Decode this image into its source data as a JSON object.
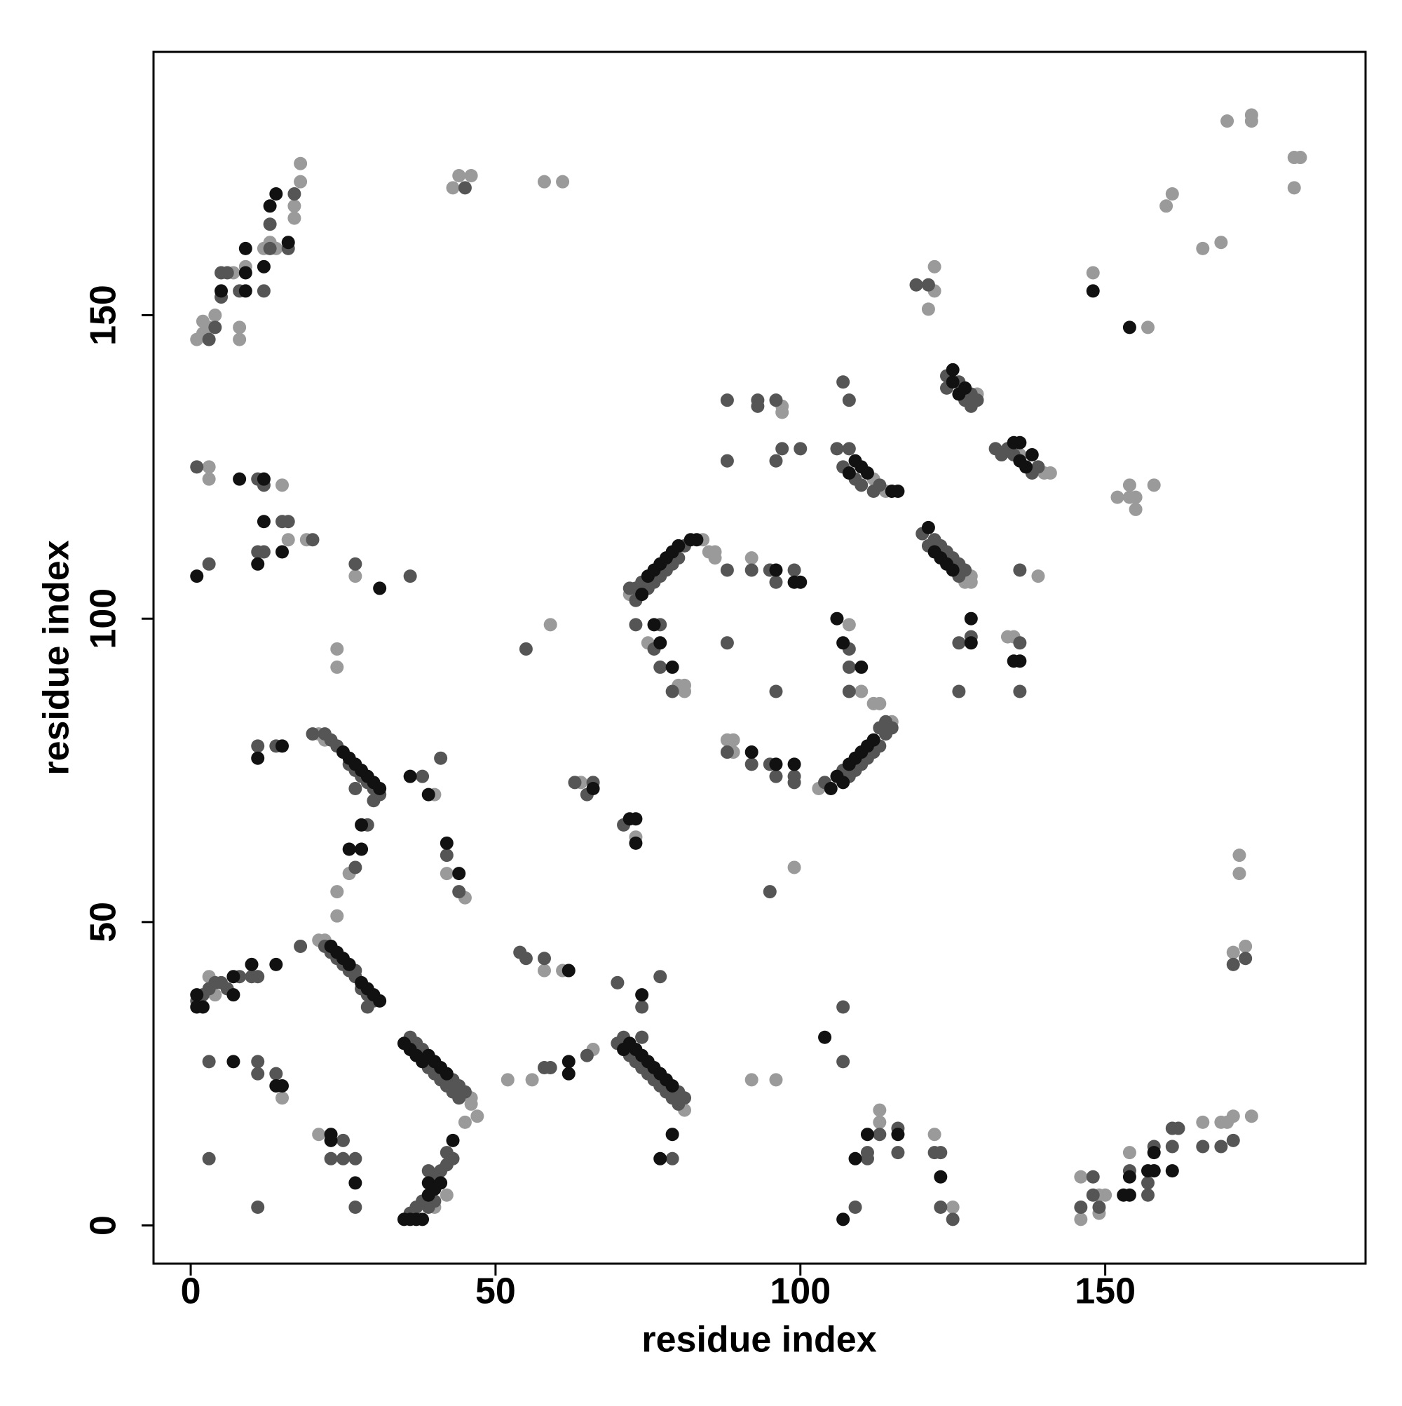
{
  "chart_data": {
    "type": "scatter",
    "x_label": "residue index",
    "y_label": "residue index",
    "xlim": [
      -6.1,
      192.7
    ],
    "ylim": [
      -6.3,
      193.4
    ],
    "xticks": [
      0,
      50,
      100,
      150
    ],
    "yticks": [
      0,
      50,
      100,
      150
    ],
    "grid": false,
    "series": [
      {
        "color": "#9a9a9a",
        "x": [
          1,
          2,
          3,
          2,
          4,
          7,
          8,
          8,
          9,
          12,
          13,
          17,
          17,
          18,
          18,
          14,
          43,
          44,
          46,
          58,
          61,
          160,
          161,
          166,
          169,
          170,
          174,
          174,
          181,
          182,
          181,
          121,
          122,
          122,
          148,
          157,
          136,
          140,
          141,
          127,
          128,
          128,
          129,
          112,
          114,
          152,
          154,
          154,
          155,
          155,
          158,
          134,
          135,
          139,
          72,
          84,
          85,
          86,
          86,
          92,
          95,
          75,
          80,
          81,
          81,
          97,
          97,
          103,
          112,
          113,
          115,
          108,
          110,
          88,
          89,
          89,
          21,
          22,
          24,
          24,
          26,
          21,
          22,
          3,
          4,
          10,
          40,
          42,
          45,
          59,
          24,
          24,
          3,
          3,
          15,
          16,
          19,
          27,
          64,
          73,
          58,
          61,
          70,
          46,
          46,
          45,
          52,
          56,
          66,
          81,
          74,
          15,
          21,
          40,
          42,
          47,
          92,
          96,
          99,
          113,
          113,
          122,
          125,
          146,
          146,
          149,
          150,
          149,
          154,
          158,
          166,
          169,
          170,
          171,
          174,
          171,
          173,
          172,
          172
        ],
        "values": [
          146,
          147,
          148,
          149,
          150,
          157,
          148,
          146,
          158,
          161,
          162,
          168,
          166,
          172,
          175,
          161,
          171,
          173,
          173,
          172,
          172,
          168,
          170,
          161,
          162,
          182,
          183,
          182,
          176,
          176,
          171,
          151,
          154,
          158,
          157,
          148,
          127,
          124,
          124,
          106,
          106,
          107,
          137,
          123,
          121,
          120,
          122,
          120,
          120,
          118,
          122,
          97,
          97,
          107,
          104,
          113,
          111,
          111,
          110,
          110,
          108,
          96,
          89,
          88,
          89,
          135,
          134,
          72,
          86,
          86,
          83,
          99,
          88,
          80,
          80,
          78,
          81,
          80,
          55,
          51,
          58,
          47,
          47,
          41,
          38,
          43,
          71,
          58,
          54,
          99,
          95,
          92,
          125,
          123,
          122,
          113,
          113,
          107,
          73,
          64,
          42,
          42,
          40,
          21,
          20,
          17,
          24,
          24,
          29,
          19,
          31,
          21,
          15,
          3,
          5,
          18,
          24,
          24,
          59,
          17,
          19,
          15,
          3,
          1,
          8,
          5,
          5,
          2,
          12,
          9,
          17,
          17,
          17,
          18,
          18,
          45,
          46,
          58,
          61
        ]
      },
      {
        "color": "#555555",
        "x": [
          5,
          5,
          6,
          8,
          12,
          13,
          13,
          16,
          17,
          4,
          3,
          45,
          119,
          121,
          132,
          133,
          134,
          135,
          138,
          139,
          124,
          124,
          126,
          127,
          128,
          128,
          129,
          106,
          107,
          108,
          109,
          110,
          112,
          113,
          107,
          108,
          120,
          121,
          122,
          123,
          124,
          125,
          126,
          126,
          127,
          126,
          128,
          126,
          136,
          136,
          136,
          72,
          73,
          73,
          74,
          75,
          76,
          77,
          78,
          79,
          80,
          81,
          88,
          92,
          95,
          96,
          99,
          73,
          77,
          76,
          77,
          79,
          88,
          88,
          93,
          93,
          96,
          96,
          97,
          100,
          104,
          107,
          108,
          109,
          110,
          111,
          112,
          113,
          114,
          115,
          113,
          114,
          108,
          108,
          108,
          88,
          92,
          95,
          96,
          99,
          99,
          20,
          22,
          23,
          24,
          26,
          27,
          28,
          29,
          30,
          31,
          30,
          27,
          29,
          27,
          11,
          14,
          22,
          23,
          24,
          25,
          26,
          27,
          27,
          28,
          29,
          30,
          29,
          18,
          1,
          2,
          3,
          4,
          5,
          6,
          8,
          10,
          11,
          38,
          41,
          42,
          44,
          1,
          3,
          11,
          12,
          15,
          16,
          11,
          12,
          20,
          27,
          36,
          63,
          65,
          66,
          71,
          54,
          55,
          58,
          70,
          74,
          77,
          36,
          37,
          38,
          39,
          40,
          41,
          42,
          43,
          43,
          44,
          45,
          44,
          58,
          59,
          65,
          55,
          70,
          71,
          72,
          73,
          74,
          75,
          76,
          77,
          78,
          79,
          80,
          80,
          81,
          74,
          79,
          3,
          11,
          11,
          14,
          23,
          25,
          25,
          27,
          27,
          11,
          3,
          36,
          37,
          38,
          39,
          40,
          40,
          41,
          42,
          42,
          43,
          39,
          107,
          107,
          109,
          111,
          111,
          113,
          116,
          116,
          122,
          123,
          123,
          125,
          146,
          148,
          148,
          149,
          154,
          157,
          157,
          158,
          161,
          161,
          162,
          166,
          169,
          171,
          171,
          173,
          95,
          96,
          88
        ],
        "values": [
          157,
          153,
          157,
          154,
          154,
          161,
          165,
          161,
          170,
          148,
          146,
          171,
          155,
          155,
          128,
          127,
          128,
          127,
          124,
          125,
          138,
          140,
          139,
          136,
          135,
          137,
          136,
          128,
          125,
          128,
          123,
          122,
          121,
          122,
          139,
          136,
          114,
          112,
          113,
          112,
          111,
          110,
          107,
          109,
          108,
          96,
          97,
          88,
          96,
          88,
          108,
          105,
          103,
          105,
          106,
          105,
          106,
          107,
          108,
          109,
          110,
          112,
          108,
          108,
          108,
          106,
          108,
          99,
          99,
          95,
          92,
          88,
          136,
          126,
          136,
          135,
          136,
          126,
          128,
          128,
          73,
          75,
          74,
          75,
          76,
          77,
          78,
          79,
          81,
          82,
          82,
          83,
          95,
          92,
          88,
          78,
          76,
          76,
          74,
          74,
          73,
          81,
          81,
          80,
          79,
          76,
          75,
          74,
          73,
          72,
          71,
          70,
          72,
          66,
          59,
          79,
          79,
          46,
          45,
          44,
          43,
          42,
          42,
          41,
          39,
          38,
          37,
          36,
          46,
          37,
          38,
          39,
          40,
          40,
          39,
          41,
          41,
          41,
          74,
          77,
          61,
          55,
          125,
          109,
          123,
          122,
          116,
          116,
          111,
          111,
          113,
          109,
          107,
          73,
          71,
          73,
          66,
          45,
          44,
          44,
          40,
          36,
          41,
          31,
          30,
          29,
          26,
          25,
          24,
          23,
          24,
          22,
          23,
          22,
          21,
          26,
          26,
          28,
          95,
          30,
          31,
          28,
          27,
          26,
          25,
          24,
          23,
          22,
          21,
          22,
          20,
          21,
          31,
          11,
          27,
          27,
          25,
          25,
          11,
          14,
          11,
          11,
          3,
          3,
          11,
          2,
          3,
          4,
          3,
          8,
          4,
          9,
          10,
          12,
          11,
          9,
          36,
          27,
          3,
          11,
          12,
          15,
          12,
          16,
          12,
          12,
          3,
          1,
          3,
          8,
          5,
          3,
          9,
          5,
          7,
          13,
          13,
          16,
          16,
          13,
          13,
          14,
          43,
          44,
          55,
          88,
          96
        ]
      },
      {
        "color": "#111111",
        "x": [
          9,
          9,
          9,
          5,
          12,
          13,
          14,
          16,
          135,
          136,
          137,
          138,
          136,
          125,
          125,
          126,
          127,
          108,
          109,
          110,
          111,
          115,
          116,
          121,
          122,
          123,
          124,
          125,
          128,
          128,
          136,
          135,
          74,
          75,
          76,
          77,
          78,
          79,
          80,
          82,
          83,
          96,
          100,
          99,
          76,
          77,
          79,
          105,
          106,
          107,
          108,
          109,
          110,
          111,
          112,
          106,
          107,
          110,
          96,
          99,
          92,
          25,
          26,
          27,
          28,
          29,
          30,
          31,
          28,
          26,
          28,
          11,
          15,
          23,
          24,
          25,
          26,
          28,
          29,
          30,
          31,
          1,
          1,
          2,
          7,
          7,
          10,
          14,
          36,
          39,
          42,
          44,
          1,
          8,
          12,
          12,
          15,
          31,
          11,
          66,
          72,
          73,
          73,
          62,
          74,
          35,
          36,
          37,
          38,
          39,
          40,
          41,
          42,
          62,
          62,
          71,
          72,
          73,
          74,
          75,
          76,
          77,
          78,
          79,
          79,
          77,
          7,
          15,
          14,
          23,
          23,
          27,
          35,
          36,
          37,
          38,
          39,
          40,
          41,
          43,
          39,
          104,
          107,
          109,
          111,
          116,
          123,
          148,
          154,
          153,
          154,
          154,
          157,
          158,
          158,
          161
        ],
        "values": [
          154,
          157,
          161,
          154,
          158,
          168,
          170,
          162,
          129,
          126,
          125,
          127,
          129,
          139,
          141,
          137,
          138,
          124,
          126,
          125,
          124,
          121,
          121,
          115,
          111,
          110,
          109,
          108,
          100,
          96,
          93,
          93,
          104,
          107,
          108,
          109,
          110,
          111,
          112,
          113,
          113,
          108,
          106,
          106,
          99,
          96,
          92,
          72,
          74,
          73,
          76,
          77,
          78,
          79,
          80,
          100,
          96,
          92,
          76,
          76,
          78,
          78,
          77,
          76,
          75,
          74,
          73,
          72,
          66,
          62,
          62,
          77,
          79,
          46,
          45,
          44,
          43,
          40,
          39,
          38,
          37,
          36,
          38,
          36,
          41,
          38,
          43,
          43,
          74,
          71,
          63,
          58,
          107,
          123,
          123,
          116,
          111,
          105,
          109,
          72,
          67,
          67,
          63,
          42,
          38,
          30,
          29,
          28,
          27,
          28,
          27,
          26,
          25,
          27,
          25,
          29,
          30,
          29,
          28,
          27,
          26,
          25,
          24,
          23,
          15,
          11,
          27,
          23,
          23,
          15,
          14,
          7,
          1,
          1,
          1,
          1,
          7,
          6,
          7,
          14,
          5,
          31,
          1,
          11,
          15,
          15,
          8,
          154,
          148,
          5,
          5,
          8,
          9,
          9,
          12,
          9
        ]
      }
    ]
  }
}
